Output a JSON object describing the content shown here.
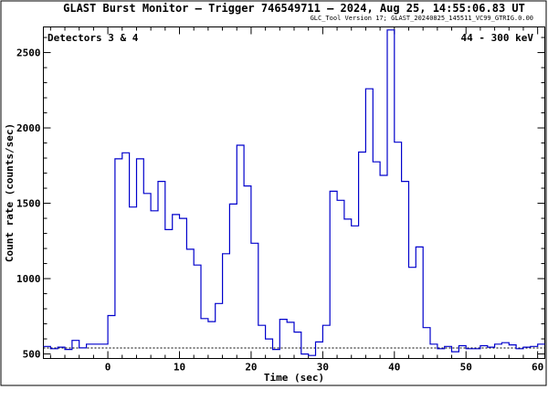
{
  "chart_data": {
    "type": "line",
    "title": "GLAST Burst Monitor  –  Trigger 746549711  –  2024, Aug 25, 14:55:06.83 UT",
    "subtitle": "GLC_Tool Version 17; GLAST_20240825_145511_VC99_GTRIG.0.00",
    "xlabel": "Time (sec)",
    "ylabel": "Count rate (counts/sec)",
    "xlim": [
      -9,
      61
    ],
    "ylim": [
      470,
      2670
    ],
    "xticks": [
      0,
      10,
      20,
      30,
      40,
      50,
      60
    ],
    "yticks": [
      500,
      1000,
      1500,
      2000,
      2500
    ],
    "annotations": {
      "detectors": "Detectors 3 & 4",
      "energy": "44 - 300 keV"
    },
    "background_level": 540,
    "series": [
      {
        "style": "step",
        "color": "#0000cc",
        "x": [
          -9,
          -8,
          -7,
          -6,
          -5,
          -4,
          -3,
          -2,
          -1,
          0,
          1,
          2,
          3,
          4,
          5,
          6,
          7,
          8,
          9,
          10,
          11,
          12,
          13,
          14,
          15,
          16,
          17,
          18,
          19,
          20,
          21,
          22,
          23,
          24,
          25,
          26,
          27,
          28,
          29,
          30,
          31,
          32,
          33,
          34,
          35,
          36,
          37,
          38,
          39,
          40,
          41,
          42,
          43,
          44,
          45,
          46,
          47,
          48,
          49,
          50,
          51,
          52,
          53,
          54,
          55,
          56,
          57,
          58,
          59,
          60
        ],
        "y": [
          550,
          535,
          545,
          530,
          590,
          540,
          565,
          565,
          565,
          755,
          1795,
          1835,
          1475,
          1795,
          1565,
          1450,
          1645,
          1325,
          1425,
          1400,
          1195,
          1090,
          735,
          715,
          835,
          1165,
          1495,
          1885,
          1615,
          1235,
          690,
          600,
          530,
          730,
          710,
          645,
          500,
          490,
          580,
          690,
          1580,
          1520,
          1395,
          1350,
          1840,
          2260,
          1775,
          1685,
          2650,
          1905,
          1645,
          1075,
          1210,
          675,
          565,
          535,
          550,
          515,
          555,
          535,
          535,
          555,
          545,
          565,
          575,
          560,
          535,
          545,
          550,
          565
        ]
      }
    ]
  }
}
